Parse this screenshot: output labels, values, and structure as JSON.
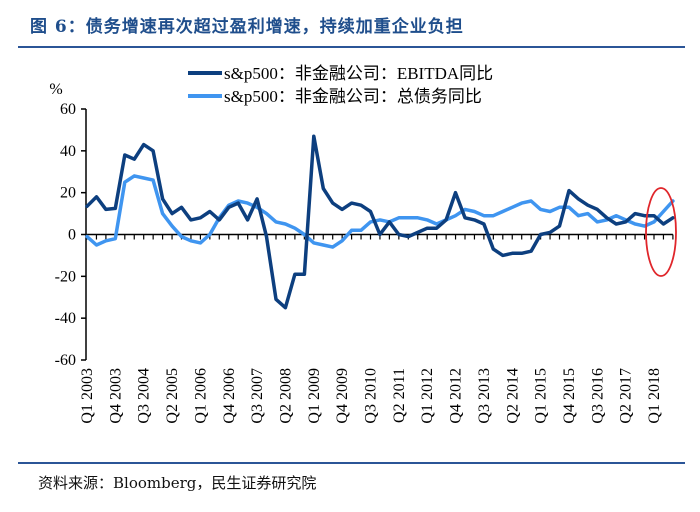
{
  "title": "图 6：债务增速再次超过盈利增速，持续加重企业负担",
  "source": "资料来源：Bloomberg，民生证券研究院",
  "chart_data": {
    "type": "line",
    "ylabel": "%",
    "ylim": [
      -60,
      60
    ],
    "yticks": [
      "60",
      "40",
      "20",
      "0",
      "-20",
      "-40",
      "-60"
    ],
    "ytick_values": [
      60,
      40,
      20,
      0,
      -20,
      -40,
      -60
    ],
    "x_start": "Q1 2003",
    "x_end": "Q3 2018",
    "x_tick_labels": [
      "Q1 2003",
      "Q4 2003",
      "Q3 2004",
      "Q2 2005",
      "Q1 2006",
      "Q4 2006",
      "Q3 2007",
      "Q2 2008",
      "Q1 2009",
      "Q4 2009",
      "Q3 2010",
      "Q2 2011",
      "Q1 2012",
      "Q4 2012",
      "Q3 2013",
      "Q2 2014",
      "Q1 2015",
      "Q4 2015",
      "Q3 2016",
      "Q2 2017",
      "Q1 2018"
    ],
    "x_tick_every_quarters": 3,
    "series": [
      {
        "name": "s&p500：非金融公司：EBITDA同比",
        "color": "#0d3f7f",
        "values": [
          13.5,
          18,
          12,
          12.5,
          38,
          36,
          43,
          40,
          17,
          10,
          13,
          7,
          8,
          11,
          7,
          13,
          15,
          7,
          17,
          -1,
          -31,
          -35,
          -19,
          -19,
          47,
          22,
          15,
          12,
          15,
          14,
          11,
          0,
          6,
          0,
          -1,
          1,
          3,
          3,
          7,
          20,
          8,
          7,
          5,
          -7,
          -10,
          -9,
          -9,
          -8,
          0,
          1,
          4,
          21,
          17,
          14,
          12,
          8,
          5,
          6,
          10,
          9,
          9,
          5,
          8
        ]
      },
      {
        "name": "s&p500：非金融公司：总债务同比",
        "color": "#3f95f0",
        "values": [
          -1,
          -5,
          -3,
          -2,
          25,
          28,
          27,
          26,
          10,
          4,
          -1,
          -3,
          -4,
          0,
          8,
          14,
          16,
          15,
          13,
          10,
          6,
          5,
          3,
          0,
          -4,
          -5,
          -6,
          -3,
          2,
          2,
          6,
          7,
          6,
          8,
          8,
          8,
          7,
          5,
          7,
          9,
          12,
          11,
          9,
          9,
          11,
          13,
          15,
          16,
          12,
          11,
          13,
          13,
          9,
          10,
          6,
          7,
          9,
          7,
          5,
          4,
          6,
          11,
          16
        ]
      }
    ],
    "annotation": "red ellipse highlighting latest quarters",
    "annotation_color": "#e0262b",
    "legend_position": "top-center"
  }
}
